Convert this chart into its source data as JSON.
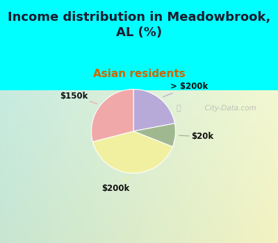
{
  "title": "Income distribution in Meadowbrook,\nAL (%)",
  "subtitle": "Asian residents",
  "title_color": "#1a1a2e",
  "subtitle_color": "#cc6600",
  "background_color": "#00ffff",
  "slices": [
    {
      "label": "> $200k",
      "value": 22,
      "color": "#b8aad8"
    },
    {
      "label": "$20k",
      "value": 9,
      "color": "#a0b890"
    },
    {
      "label": "$200k",
      "value": 40,
      "color": "#f0f0a0"
    },
    {
      "label": "$150k",
      "value": 29,
      "color": "#f0a8a8"
    }
  ],
  "label_fontsize": 8.5,
  "title_fontsize": 13,
  "subtitle_fontsize": 11,
  "watermark": "  City-Data.com",
  "watermark_icon": "ⓘ",
  "chart_bg_topleft": [
    0.78,
    0.92,
    0.88
  ],
  "chart_bg_botright": [
    0.95,
    0.97,
    0.82
  ]
}
